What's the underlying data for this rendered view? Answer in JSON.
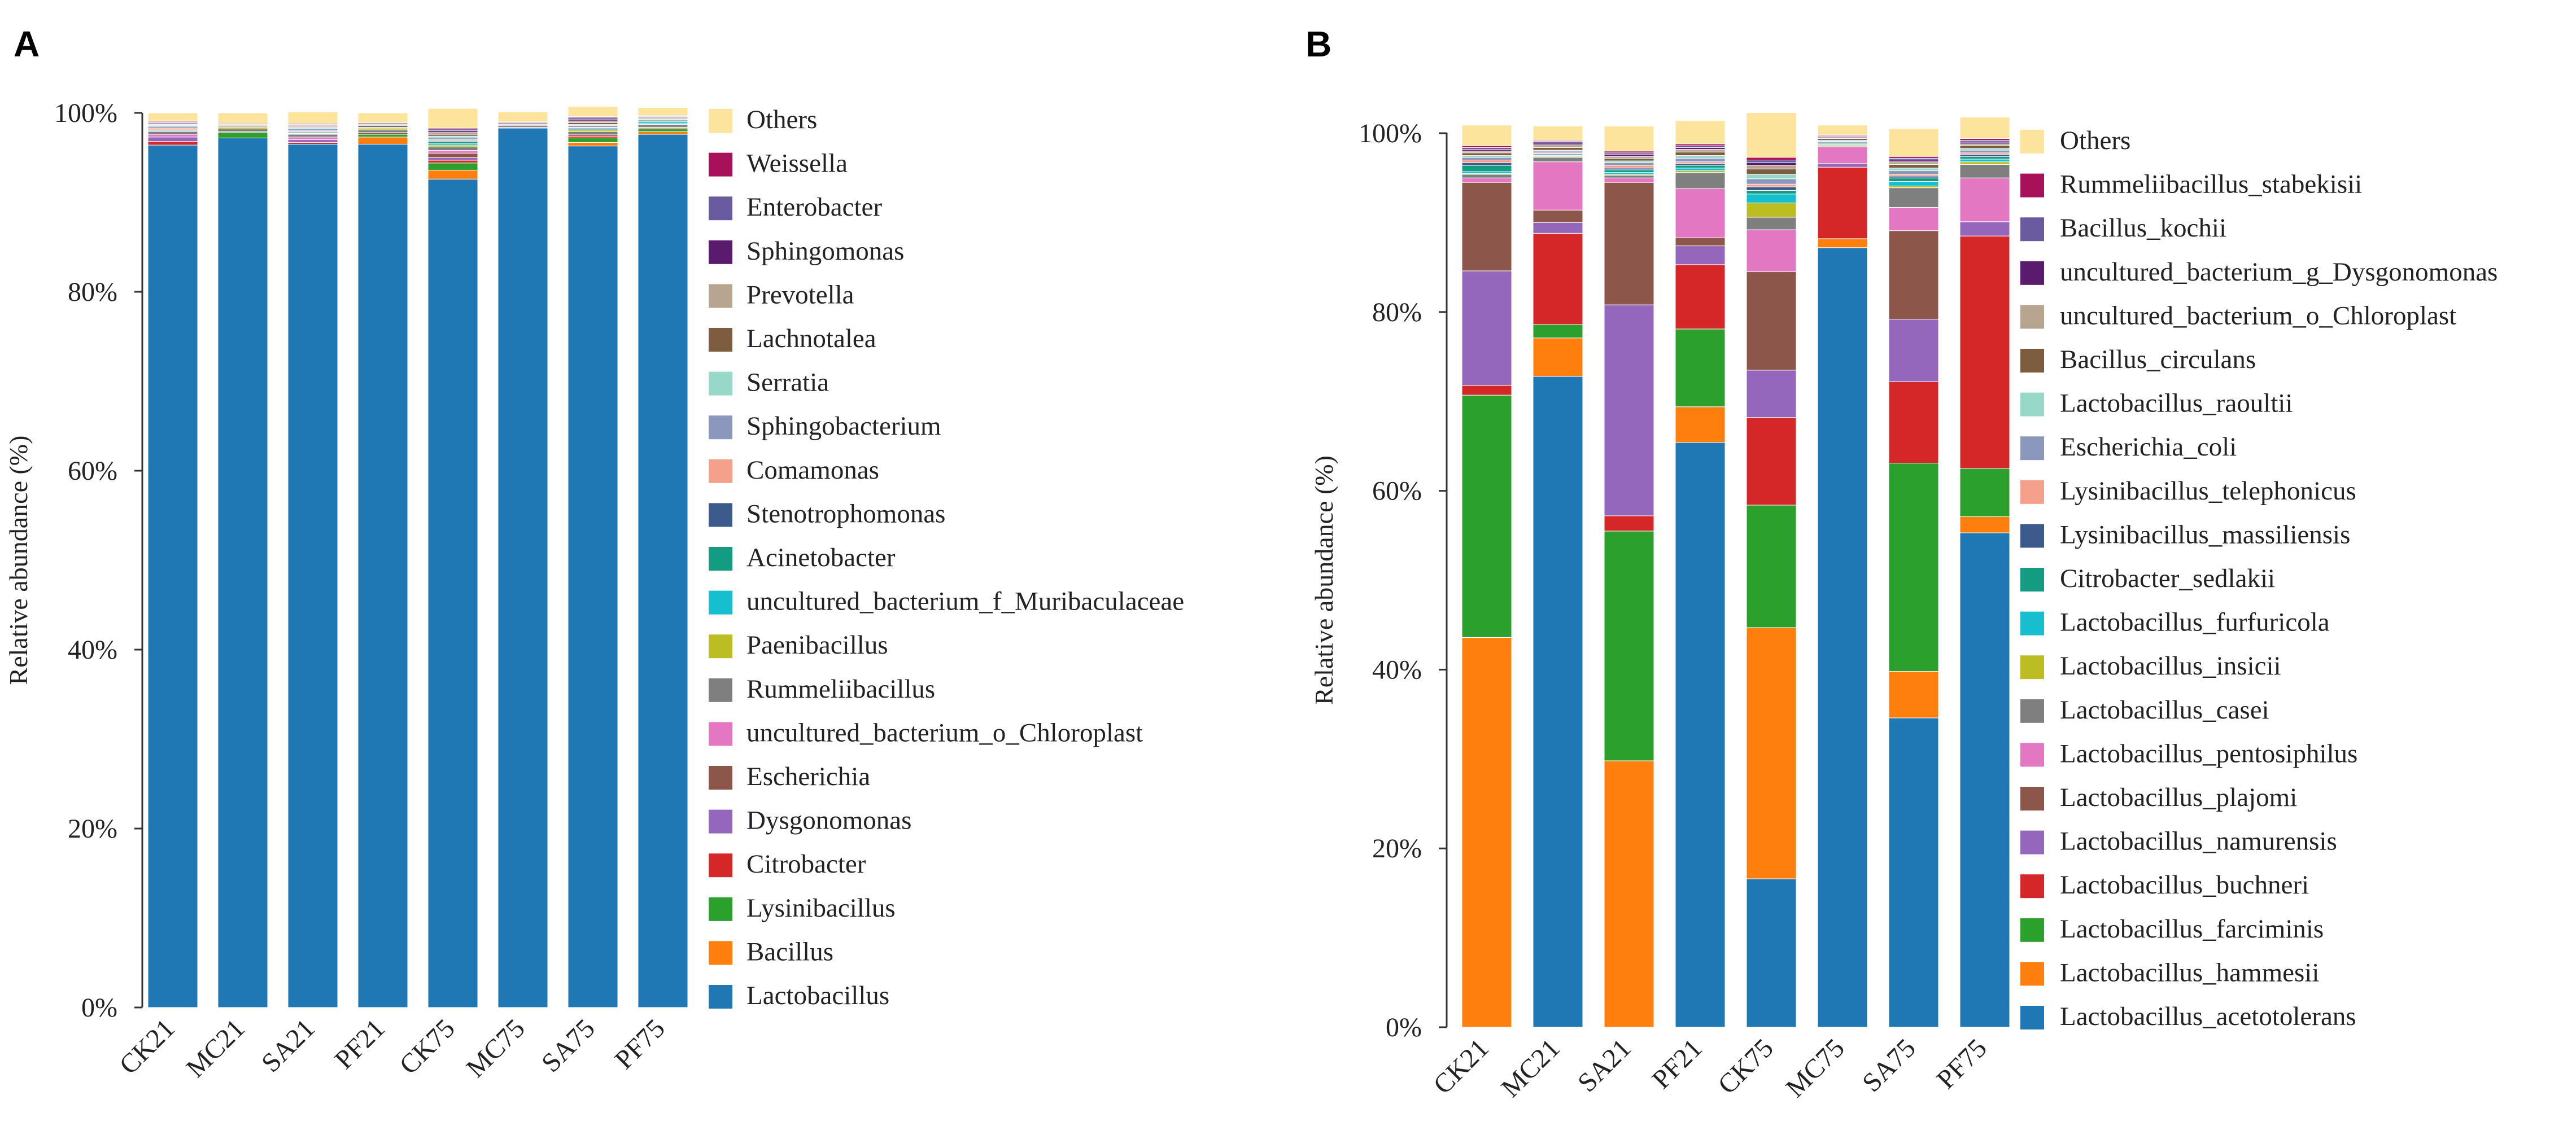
{
  "chart_data": [
    {
      "panel": "A",
      "type": "bar",
      "stacked": true,
      "ylabel": "Relative abundance (%)",
      "ylim": [
        0,
        100
      ],
      "yticks": [
        "0%",
        "20%",
        "40%",
        "60%",
        "80%",
        "100%"
      ],
      "categories": [
        "CK21",
        "MC21",
        "SA21",
        "PF21",
        "CK75",
        "MC75",
        "SA75",
        "PF75"
      ],
      "series": [
        {
          "name": "Lactobacillus",
          "color": "#1f77b4",
          "values": [
            96.4,
            97.2,
            96.5,
            96.5,
            92.6,
            98.3,
            96.3,
            97.6
          ]
        },
        {
          "name": "Bacillus",
          "color": "#ff7f0e",
          "values": [
            0.0,
            0.0,
            0.0,
            0.8,
            1.0,
            0.0,
            0.4,
            0.3
          ]
        },
        {
          "name": "Lysinibacillus",
          "color": "#2ca02c",
          "values": [
            0.0,
            0.6,
            0.0,
            0.3,
            0.8,
            0.0,
            0.5,
            0.3
          ]
        },
        {
          "name": "Citrobacter",
          "color": "#d62728",
          "values": [
            0.4,
            0.0,
            0.2,
            0.0,
            0.3,
            0.0,
            0.2,
            0.1
          ]
        },
        {
          "name": "Dysgonomonas",
          "color": "#9467bd",
          "values": [
            0.5,
            0.0,
            0.3,
            0.0,
            0.3,
            0.0,
            0.0,
            0.0
          ]
        },
        {
          "name": "Escherichia",
          "color": "#8c564b",
          "values": [
            0.0,
            0.1,
            0.0,
            0.2,
            0.5,
            0.1,
            0.2,
            0.1
          ]
        },
        {
          "name": "uncultured_bacterium_o_Chloroplast",
          "color": "#e377c2",
          "values": [
            0.3,
            0.0,
            0.3,
            0.0,
            0.3,
            0.0,
            0.0,
            0.0
          ]
        },
        {
          "name": "Rummeliibacillus",
          "color": "#7f7f7f",
          "values": [
            0.3,
            0.3,
            0.3,
            0.3,
            0.4,
            0.2,
            0.3,
            0.3
          ]
        },
        {
          "name": "Paenibacillus",
          "color": "#bcbd22",
          "values": [
            0.0,
            0.2,
            0.0,
            0.2,
            0.2,
            0.0,
            0.2,
            0.1
          ]
        },
        {
          "name": "uncultured_bacterium_f_Muribaculaceae",
          "color": "#17becf",
          "values": [
            0.0,
            0.0,
            0.1,
            0.1,
            0.2,
            0.0,
            0.0,
            0.2
          ]
        },
        {
          "name": "Acinetobacter",
          "color": "#139c82",
          "values": [
            0.1,
            0.0,
            0.1,
            0.0,
            0.2,
            0.0,
            0.1,
            0.1
          ]
        },
        {
          "name": "Stenotrophomonas",
          "color": "#3d5a8c",
          "values": [
            0.1,
            0.0,
            0.1,
            0.0,
            0.1,
            0.0,
            0.1,
            0.1
          ]
        },
        {
          "name": "Comamonas",
          "color": "#f5a08a",
          "values": [
            0.2,
            0.0,
            0.1,
            0.0,
            0.1,
            0.0,
            0.1,
            0.0
          ]
        },
        {
          "name": "Sphingobacterium",
          "color": "#8b97bd",
          "values": [
            0.2,
            0.0,
            0.2,
            0.0,
            0.2,
            0.0,
            0.2,
            0.0
          ]
        },
        {
          "name": "Serratia",
          "color": "#98d8c8",
          "values": [
            0.1,
            0.0,
            0.1,
            0.0,
            0.2,
            0.0,
            0.1,
            0.1
          ]
        },
        {
          "name": "Lachnotalea",
          "color": "#7d5c40",
          "values": [
            0.1,
            0.1,
            0.1,
            0.2,
            0.2,
            0.1,
            0.2,
            0.1
          ]
        },
        {
          "name": "Prevotella",
          "color": "#b8a58f",
          "values": [
            0.1,
            0.1,
            0.1,
            0.1,
            0.2,
            0.1,
            0.2,
            0.1
          ]
        },
        {
          "name": "Sphingomonas",
          "color": "#5a1a6e",
          "values": [
            0.1,
            0.1,
            0.1,
            0.1,
            0.2,
            0.1,
            0.2,
            0.1
          ]
        },
        {
          "name": "Enterobacter",
          "color": "#6a5aa0",
          "values": [
            0.1,
            0.1,
            0.1,
            0.1,
            0.2,
            0.1,
            0.2,
            0.1
          ]
        },
        {
          "name": "Weissella",
          "color": "#a8105a",
          "values": [
            0.1,
            0.0,
            0.1,
            0.0,
            0.1,
            0.0,
            0.1,
            0.0
          ]
        },
        {
          "name": "Others",
          "color": "#fde49c",
          "values": [
            0.9,
            1.2,
            1.3,
            1.1,
            2.2,
            1.1,
            1.1,
            0.9
          ]
        }
      ]
    },
    {
      "panel": "B",
      "type": "bar",
      "stacked": true,
      "ylabel": "Relative abundance (%)",
      "ylim": [
        0,
        100
      ],
      "yticks": [
        "0%",
        "20%",
        "40%",
        "60%",
        "80%",
        "100%"
      ],
      "categories": [
        "CK21",
        "MC21",
        "SA21",
        "PF21",
        "CK75",
        "MC75",
        "SA75",
        "PF75"
      ],
      "series": [
        {
          "name": "Lactobacillus_acetotolerans",
          "color": "#1f77b4",
          "values": [
            0.0,
            72.8,
            0.0,
            65.4,
            16.6,
            87.2,
            34.6,
            55.3
          ]
        },
        {
          "name": "Lactobacillus_hammesii",
          "color": "#ff7f0e",
          "values": [
            43.6,
            4.3,
            29.8,
            4.0,
            28.1,
            1.0,
            5.2,
            1.8
          ]
        },
        {
          "name": "Lactobacillus_farciminis",
          "color": "#2ca02c",
          "values": [
            27.1,
            1.5,
            25.7,
            8.7,
            13.7,
            0.0,
            23.3,
            5.4
          ]
        },
        {
          "name": "Lactobacillus_buchneri",
          "color": "#d62728",
          "values": [
            1.1,
            10.2,
            1.7,
            7.2,
            9.8,
            8.0,
            9.1,
            26.0
          ]
        },
        {
          "name": "Lactobacillus_namurensis",
          "color": "#9467bd",
          "values": [
            12.8,
            1.2,
            23.6,
            2.1,
            5.3,
            0.4,
            7.0,
            1.6
          ]
        },
        {
          "name": "Lactobacillus_plajomi",
          "color": "#8c564b",
          "values": [
            9.9,
            1.4,
            13.7,
            0.9,
            11.0,
            0.0,
            9.9,
            0.0
          ]
        },
        {
          "name": "Lactobacillus_pentosiphilus",
          "color": "#e377c2",
          "values": [
            0.5,
            5.4,
            0.5,
            5.5,
            4.7,
            1.9,
            2.6,
            4.9
          ]
        },
        {
          "name": "Lactobacillus_casei",
          "color": "#7f7f7f",
          "values": [
            0.4,
            0.5,
            0.3,
            1.8,
            1.4,
            0.1,
            2.2,
            1.5
          ]
        },
        {
          "name": "Lactobacillus_insicii",
          "color": "#bcbd22",
          "values": [
            0.1,
            0.1,
            0.1,
            0.2,
            1.6,
            0.1,
            0.2,
            0.3
          ]
        },
        {
          "name": "Lactobacillus_furfuricola",
          "color": "#17becf",
          "values": [
            0.2,
            0.1,
            0.2,
            0.3,
            1.0,
            0.1,
            0.5,
            0.3
          ]
        },
        {
          "name": "Citrobacter_sedlakii",
          "color": "#139c82",
          "values": [
            0.7,
            0.1,
            0.3,
            0.3,
            0.4,
            0.1,
            0.4,
            0.3
          ]
        },
        {
          "name": "Lysinibacillus_massiliensis",
          "color": "#3d5a8c",
          "values": [
            0.3,
            0.1,
            0.2,
            0.2,
            0.4,
            0.1,
            0.2,
            0.2
          ]
        },
        {
          "name": "Lysinibacillus_telephonicus",
          "color": "#f5a08a",
          "values": [
            0.3,
            0.1,
            0.3,
            0.2,
            0.3,
            0.0,
            0.2,
            0.2
          ]
        },
        {
          "name": "Escherichia_coli",
          "color": "#8b97bd",
          "values": [
            0.3,
            0.2,
            0.3,
            0.4,
            0.6,
            0.1,
            0.4,
            0.3
          ]
        },
        {
          "name": "Lactobacillus_raoultii",
          "color": "#98d8c8",
          "values": [
            0.2,
            0.1,
            0.2,
            0.3,
            0.5,
            0.1,
            0.3,
            0.2
          ]
        },
        {
          "name": "Bacillus_circulans",
          "color": "#7d5c40",
          "values": [
            0.3,
            0.3,
            0.3,
            0.4,
            0.6,
            0.2,
            0.4,
            0.3
          ]
        },
        {
          "name": "uncultured_bacterium_o_Chloroplast",
          "color": "#b8a58f",
          "values": [
            0.2,
            0.3,
            0.2,
            0.3,
            0.4,
            0.1,
            0.3,
            0.2
          ]
        },
        {
          "name": "uncultured_bacterium_g_Dysgonomonas",
          "color": "#5a1a6e",
          "values": [
            0.2,
            0.2,
            0.2,
            0.2,
            0.3,
            0.1,
            0.2,
            0.2
          ]
        },
        {
          "name": "Bacillus_kochii",
          "color": "#6a5aa0",
          "values": [
            0.2,
            0.2,
            0.2,
            0.2,
            0.3,
            0.1,
            0.2,
            0.2
          ]
        },
        {
          "name": "Rummeliibacillus_stabekisii",
          "color": "#a8105a",
          "values": [
            0.2,
            0.1,
            0.2,
            0.2,
            0.3,
            0.1,
            0.2,
            0.2
          ]
        },
        {
          "name": "Others",
          "color": "#fde49c",
          "values": [
            2.3,
            1.6,
            2.8,
            2.6,
            5.0,
            1.1,
            3.1,
            2.4
          ]
        }
      ]
    }
  ]
}
